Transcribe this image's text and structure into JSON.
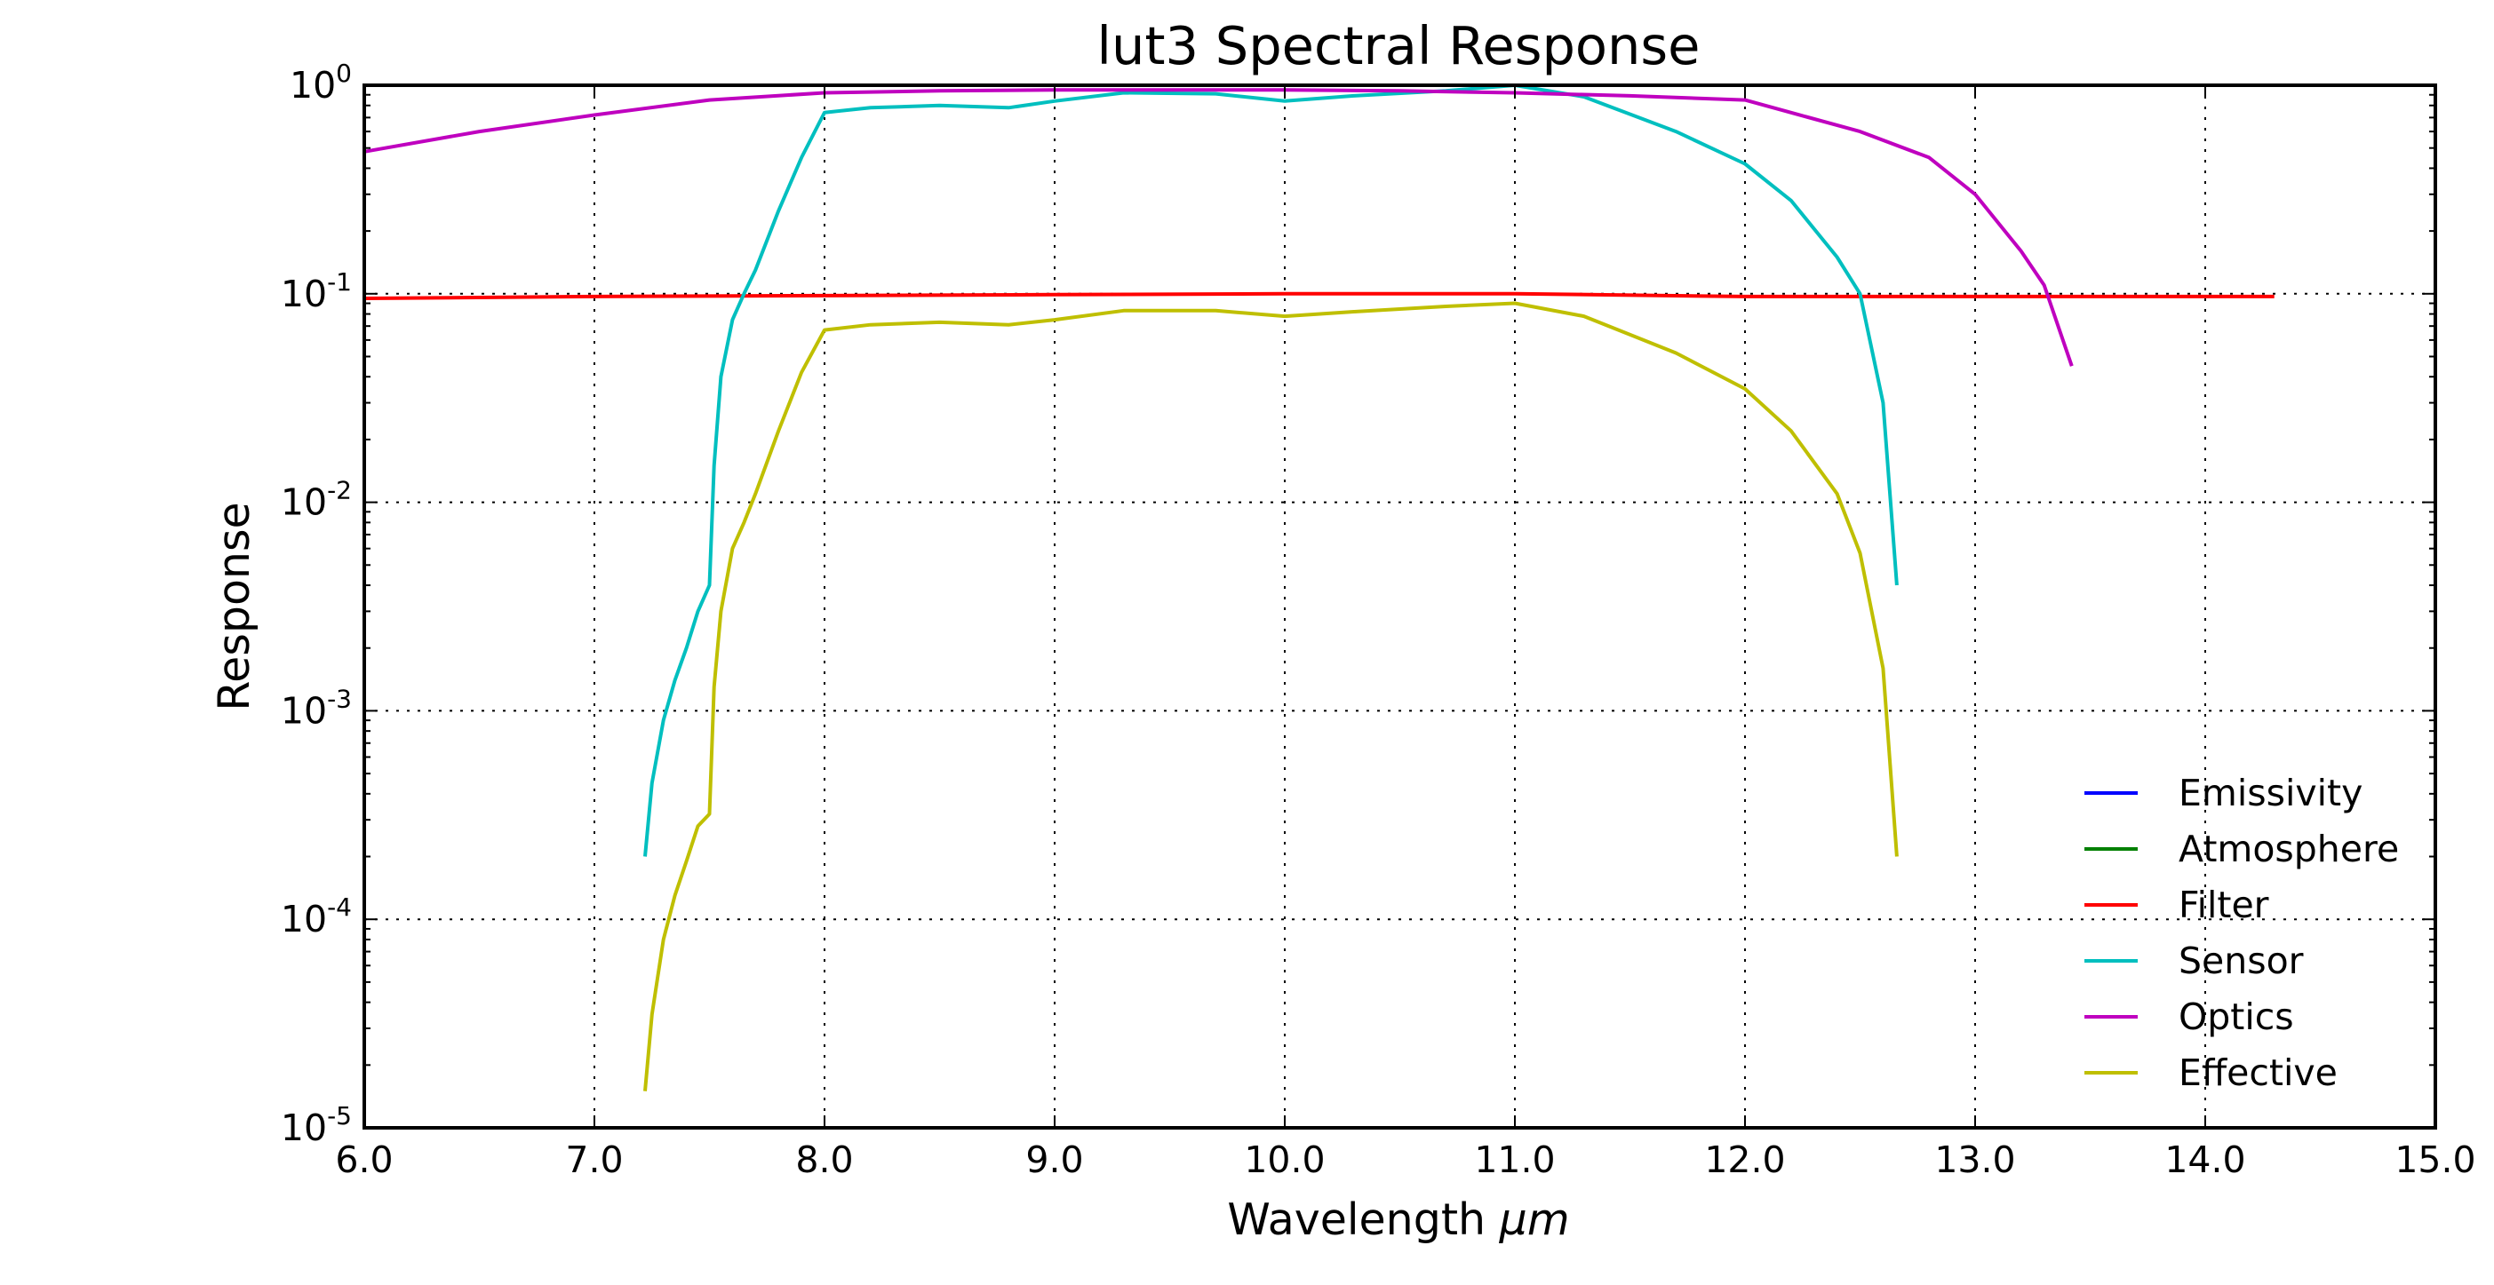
{
  "chart_data": {
    "type": "line",
    "title": "lut3 Spectral Response",
    "xlabel": "Wavelength",
    "xlabel_unit": "μm",
    "ylabel": "Response",
    "xlim": [
      6.0,
      15.0
    ],
    "ylim": [
      1e-05,
      1
    ],
    "yscale": "log",
    "grid": true,
    "legend_position": "lower-right",
    "x_ticks": [
      "6.0",
      "7.0",
      "8.0",
      "9.0",
      "10.0",
      "11.0",
      "12.0",
      "13.0",
      "14.0",
      "15.0"
    ],
    "y_ticks": [
      {
        "base": "10",
        "exp": "-5",
        "value": 1e-05
      },
      {
        "base": "10",
        "exp": "-4",
        "value": 0.0001
      },
      {
        "base": "10",
        "exp": "-3",
        "value": 0.001
      },
      {
        "base": "10",
        "exp": "-2",
        "value": 0.01
      },
      {
        "base": "10",
        "exp": "-1",
        "value": 0.1
      },
      {
        "base": "10",
        "exp": "0",
        "value": 1
      }
    ],
    "series": [
      {
        "name": "Emissivity",
        "color": "#0000ff",
        "x": [
          6.0,
          14.3
        ],
        "y": [
          1.0,
          1.0
        ]
      },
      {
        "name": "Atmosphere",
        "color": "#008000",
        "x": [
          6.0,
          14.3
        ],
        "y": [
          1.0,
          1.0
        ]
      },
      {
        "name": "Filter",
        "color": "#ff0000",
        "x": [
          6.0,
          7.0,
          8.0,
          9.0,
          10.0,
          11.0,
          12.0,
          13.0,
          14.3
        ],
        "y": [
          0.095,
          0.097,
          0.098,
          0.099,
          0.1,
          0.1,
          0.097,
          0.097,
          0.097
        ]
      },
      {
        "name": "Sensor",
        "color": "#00bfbf",
        "x": [
          7.22,
          7.25,
          7.3,
          7.35,
          7.4,
          7.45,
          7.5,
          7.52,
          7.55,
          7.6,
          7.65,
          7.7,
          7.8,
          7.9,
          8.0,
          8.2,
          8.5,
          8.8,
          9.0,
          9.3,
          9.7,
          10.0,
          10.3,
          10.7,
          11.0,
          11.3,
          11.7,
          12.0,
          12.2,
          12.4,
          12.5,
          12.6,
          12.66
        ],
        "y": [
          0.0002,
          0.00045,
          0.0009,
          0.0014,
          0.002,
          0.003,
          0.004,
          0.015,
          0.04,
          0.075,
          0.1,
          0.13,
          0.25,
          0.45,
          0.74,
          0.78,
          0.8,
          0.78,
          0.84,
          0.92,
          0.91,
          0.84,
          0.89,
          0.94,
          1.0,
          0.88,
          0.6,
          0.42,
          0.28,
          0.15,
          0.1,
          0.03,
          0.004
        ]
      },
      {
        "name": "Optics",
        "color": "#bf00bf",
        "x": [
          6.0,
          6.5,
          7.0,
          7.5,
          8.0,
          8.5,
          9.0,
          9.5,
          10.0,
          10.5,
          11.0,
          11.5,
          12.0,
          12.5,
          12.8,
          13.0,
          13.2,
          13.3,
          13.42
        ],
        "y": [
          0.48,
          0.6,
          0.72,
          0.85,
          0.92,
          0.94,
          0.95,
          0.95,
          0.95,
          0.94,
          0.92,
          0.89,
          0.85,
          0.6,
          0.45,
          0.3,
          0.16,
          0.11,
          0.045
        ]
      },
      {
        "name": "Effective",
        "color": "#bfbf00",
        "x": [
          7.22,
          7.25,
          7.3,
          7.35,
          7.4,
          7.45,
          7.5,
          7.52,
          7.55,
          7.6,
          7.65,
          7.7,
          7.8,
          7.9,
          8.0,
          8.2,
          8.5,
          8.8,
          9.0,
          9.3,
          9.7,
          10.0,
          10.3,
          10.7,
          11.0,
          11.3,
          11.7,
          12.0,
          12.2,
          12.4,
          12.5,
          12.6,
          12.66
        ],
        "y": [
          1.5e-05,
          3.5e-05,
          8e-05,
          0.00013,
          0.00019,
          0.00028,
          0.00032,
          0.0013,
          0.003,
          0.006,
          0.008,
          0.011,
          0.022,
          0.042,
          0.067,
          0.071,
          0.073,
          0.071,
          0.075,
          0.083,
          0.083,
          0.078,
          0.082,
          0.087,
          0.09,
          0.078,
          0.052,
          0.035,
          0.022,
          0.011,
          0.0057,
          0.0016,
          0.0002
        ]
      }
    ]
  }
}
